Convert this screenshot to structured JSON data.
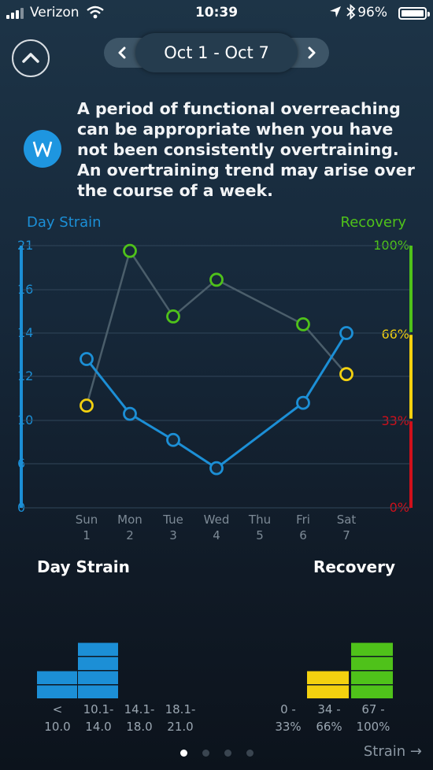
{
  "status_bar": {
    "carrier": "Verizon",
    "time": "10:39",
    "battery": "96%"
  },
  "header": {
    "date_range": "Oct 1 - Oct 7"
  },
  "insight": {
    "text": "A period of functional overreaching can be appropriate when you have not been consistently overtraining. An overtraining trend may arise over the course of a week."
  },
  "chart_data": {
    "type": "line",
    "left_axis": {
      "title": "Day Strain",
      "ticks": [
        "21",
        "16",
        "14",
        "12",
        "10",
        "6",
        "0"
      ]
    },
    "right_axis": {
      "title": "Recovery",
      "ticks": [
        "100%",
        "66%",
        "33%",
        "0%"
      ]
    },
    "days": [
      {
        "name": "Sun",
        "num": "1"
      },
      {
        "name": "Mon",
        "num": "2"
      },
      {
        "name": "Tue",
        "num": "3"
      },
      {
        "name": "Wed",
        "num": "4"
      },
      {
        "name": "Thu",
        "num": "5"
      },
      {
        "name": "Fri",
        "num": "6"
      },
      {
        "name": "Sat",
        "num": "7"
      }
    ],
    "day_strain": [
      12.8,
      10.3,
      8.2,
      5.4,
      null,
      10.8,
      14.0
    ],
    "recovery": [
      39,
      98,
      73,
      87,
      null,
      70,
      51
    ],
    "colors": {
      "strain": "#1c8fd6",
      "green": "#4fc21a",
      "yellow": "#f3d10f",
      "red": "#d0101b",
      "line": "#4b5e6b"
    }
  },
  "distribution": {
    "strain_title": "Day Strain",
    "recovery_title": "Recovery",
    "strain_bins": [
      {
        "l1": "<",
        "l2": "10.0",
        "count": 2
      },
      {
        "l1": "10.1-",
        "l2": "14.0",
        "count": 4
      },
      {
        "l1": "14.1-",
        "l2": "18.0",
        "count": 0
      },
      {
        "l1": "18.1-",
        "l2": "21.0",
        "count": 0
      }
    ],
    "recovery_bins": [
      {
        "l1": "0 -",
        "l2": "33%",
        "count": 0
      },
      {
        "l1": "34 -",
        "l2": "66%",
        "count": 2
      },
      {
        "l1": "67 -",
        "l2": "100%",
        "count": 4
      }
    ]
  },
  "footer": {
    "next_label": "Strain →",
    "pages": 4,
    "active_page": 0
  }
}
